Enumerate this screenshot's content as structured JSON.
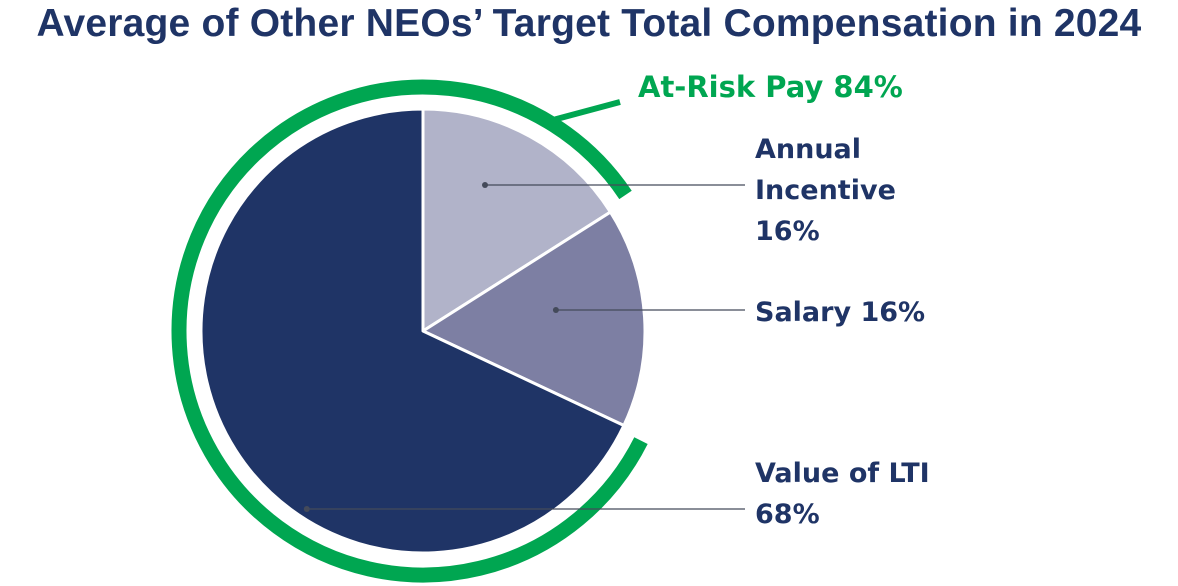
{
  "chart_data": {
    "type": "pie",
    "title": "Average of Other NEOs’ Target Total Compensation in 2024",
    "slices": [
      {
        "name": "Annual Incentive",
        "value": 16,
        "label_lines": [
          "Annual",
          "Incentive",
          "16%"
        ],
        "color": "#b1b3c9"
      },
      {
        "name": "Salary",
        "value": 16,
        "label_lines": [
          "Salary 16%"
        ],
        "color": "#7d7fa3"
      },
      {
        "name": "Value of LTI",
        "value": 68,
        "label_lines": [
          "Value of LTI",
          "68%"
        ],
        "color": "#1f3466"
      }
    ],
    "arc_label": {
      "text": "At-Risk Pay 84%",
      "value": 84,
      "color": "#00a651"
    },
    "label_color": "#1f3466"
  }
}
